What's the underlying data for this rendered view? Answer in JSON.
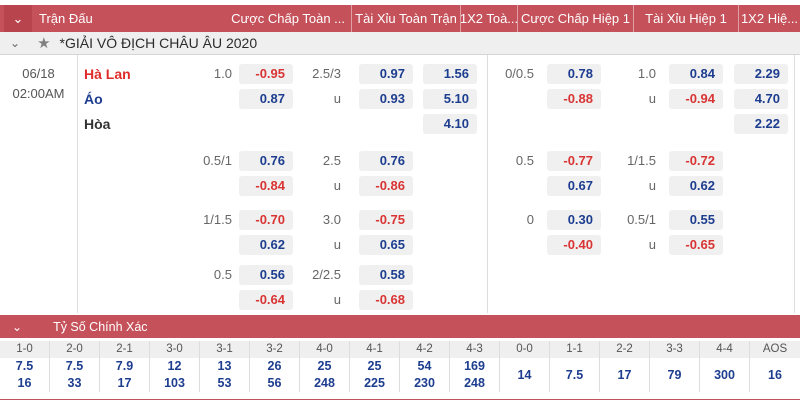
{
  "colors": {
    "bar_red": "#c5515a",
    "bar_red_dark": "#b8454e",
    "odds_positive_blue": "#1d3d8f",
    "odds_negative_red": "#d93434",
    "team_home_red": "#e02b2b",
    "chip_bg": "#f0f0f0",
    "row_gray_bg": "#efefef"
  },
  "icons": {
    "chevron_down": "⌄",
    "star": "★"
  },
  "topbar": {
    "columns": {
      "match": "Trận Đấu",
      "full_handicap": "Cược Chấp Toàn ...",
      "full_ou": "Tài Xỉu Toàn Trận",
      "full_1x2": "1X2 Toà...",
      "half_handicap": "Cược Chấp Hiệp 1",
      "half_ou": "Tài Xỉu Hiệp 1",
      "half_1x2": "1X2 Hiệ..."
    }
  },
  "league": {
    "title": "*GIẢI VÔ ĐỊCH CHÂU ÂU 2020"
  },
  "match": {
    "date": "06/18",
    "time": "02:00AM",
    "home": "Hà Lan",
    "away": "Áo",
    "draw": "Hòa"
  },
  "full": {
    "b1": {
      "r1": {
        "hdp": "1.0",
        "hdp_odds": "-0.95",
        "ou": "2.5/3",
        "ou_odds": "0.97",
        "x12": "1.56"
      },
      "r2": {
        "hdp": "",
        "hdp_odds": "0.87",
        "ou": "u",
        "ou_odds": "0.93",
        "x12": "5.10"
      },
      "r3": {
        "x12": "4.10"
      }
    },
    "b2": {
      "r1": {
        "hdp": "0.5/1",
        "hdp_odds": "0.76",
        "ou": "2.5",
        "ou_odds": "0.76"
      },
      "r2": {
        "hdp": "",
        "hdp_odds": "-0.84",
        "ou": "u",
        "ou_odds": "-0.86"
      }
    },
    "b3": {
      "r1": {
        "hdp": "1/1.5",
        "hdp_odds": "-0.70",
        "ou": "3.0",
        "ou_odds": "-0.75"
      },
      "r2": {
        "hdp": "",
        "hdp_odds": "0.62",
        "ou": "u",
        "ou_odds": "0.65"
      }
    },
    "b4": {
      "r1": {
        "hdp": "0.5",
        "hdp_odds": "0.56",
        "ou": "2/2.5",
        "ou_odds": "0.58"
      },
      "r2": {
        "hdp": "",
        "hdp_odds": "-0.64",
        "ou": "u",
        "ou_odds": "-0.68"
      }
    }
  },
  "half": {
    "b1": {
      "r1": {
        "hdp": "0/0.5",
        "hdp_odds": "0.78",
        "ou": "1.0",
        "ou_odds": "0.84",
        "x12": "2.29"
      },
      "r2": {
        "hdp": "",
        "hdp_odds": "-0.88",
        "ou": "u",
        "ou_odds": "-0.94",
        "x12": "4.70"
      },
      "r3": {
        "x12": "2.22"
      }
    },
    "b2": {
      "r1": {
        "hdp": "0.5",
        "hdp_odds": "-0.77",
        "ou": "1/1.5",
        "ou_odds": "-0.72"
      },
      "r2": {
        "hdp": "",
        "hdp_odds": "0.67",
        "ou": "u",
        "ou_odds": "0.62"
      }
    },
    "b3": {
      "r1": {
        "hdp": "0",
        "hdp_odds": "0.30",
        "ou": "0.5/1",
        "ou_odds": "0.55"
      },
      "r2": {
        "hdp": "",
        "hdp_odds": "-0.40",
        "ou": "u",
        "ou_odds": "-0.65"
      }
    }
  },
  "correct_score": {
    "title": "Tỷ Số Chính Xác",
    "columns": [
      {
        "label": "1-0",
        "values": [
          "7.5",
          "16"
        ]
      },
      {
        "label": "2-0",
        "values": [
          "7.5",
          "33"
        ]
      },
      {
        "label": "2-1",
        "values": [
          "7.9",
          "17"
        ]
      },
      {
        "label": "3-0",
        "values": [
          "12",
          "103"
        ]
      },
      {
        "label": "3-1",
        "values": [
          "13",
          "53"
        ]
      },
      {
        "label": "3-2",
        "values": [
          "26",
          "56"
        ]
      },
      {
        "label": "4-0",
        "values": [
          "25",
          "248"
        ]
      },
      {
        "label": "4-1",
        "values": [
          "25",
          "225"
        ]
      },
      {
        "label": "4-2",
        "values": [
          "54",
          "230"
        ]
      },
      {
        "label": "4-3",
        "values": [
          "169",
          "248"
        ]
      },
      {
        "label": "0-0",
        "values": [
          "14"
        ]
      },
      {
        "label": "1-1",
        "values": [
          "7.5"
        ]
      },
      {
        "label": "2-2",
        "values": [
          "17"
        ]
      },
      {
        "label": "3-3",
        "values": [
          "79"
        ]
      },
      {
        "label": "4-4",
        "values": [
          "300"
        ]
      },
      {
        "label": "AOS",
        "values": [
          "16"
        ]
      }
    ]
  }
}
